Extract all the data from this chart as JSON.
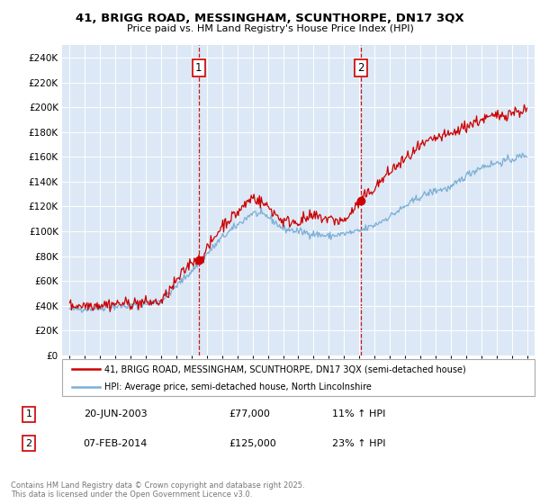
{
  "title": "41, BRIGG ROAD, MESSINGHAM, SCUNTHORPE, DN17 3QX",
  "subtitle": "Price paid vs. HM Land Registry's House Price Index (HPI)",
  "background_color": "#ffffff",
  "plot_bg_color": "#dce8f5",
  "legend_line1": "41, BRIGG ROAD, MESSINGHAM, SCUNTHORPE, DN17 3QX (semi-detached house)",
  "legend_line2": "HPI: Average price, semi-detached house, North Lincolnshire",
  "annotation1_date": "20-JUN-2003",
  "annotation1_price": "£77,000",
  "annotation1_hpi": "11% ↑ HPI",
  "annotation2_date": "07-FEB-2014",
  "annotation2_price": "£125,000",
  "annotation2_hpi": "23% ↑ HPI",
  "footer": "Contains HM Land Registry data © Crown copyright and database right 2025.\nThis data is licensed under the Open Government Licence v3.0.",
  "red_color": "#cc0000",
  "blue_color": "#7aaed6",
  "marker1_x": 2003.47,
  "marker1_y": 77000,
  "marker2_x": 2014.1,
  "marker2_y": 125000,
  "vline1_x": 2003.47,
  "vline2_x": 2014.1,
  "ylim": [
    0,
    250000
  ],
  "xlim": [
    1994.5,
    2025.5
  ],
  "yticks": [
    0,
    20000,
    40000,
    60000,
    80000,
    100000,
    120000,
    140000,
    160000,
    180000,
    200000,
    220000,
    240000
  ]
}
